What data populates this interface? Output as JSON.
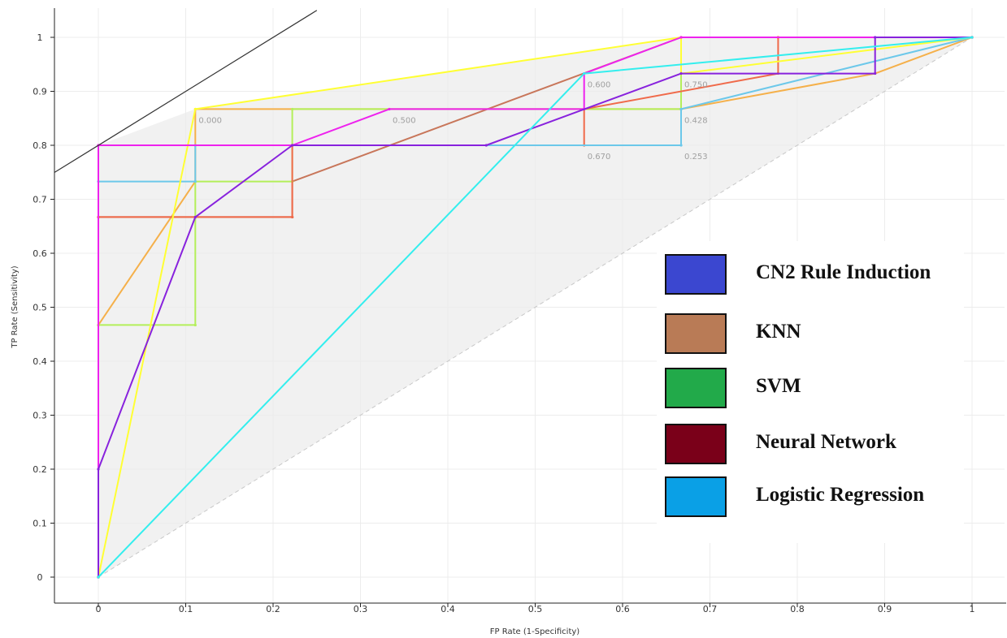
{
  "chart_data": {
    "type": "line",
    "title": "",
    "xlabel": "FP Rate (1-Specificity)",
    "ylabel": "TP Rate (Sensitivity)",
    "xlim": [
      0,
      1
    ],
    "ylim": [
      0,
      1
    ],
    "x_ticks": [
      "0",
      "0.1",
      "0.2",
      "0.3",
      "0.4",
      "0.5",
      "0.6",
      "0.7",
      "0.8",
      "0.9",
      "1"
    ],
    "y_ticks": [
      "0",
      "0.1",
      "0.2",
      "0.3",
      "0.4",
      "0.5",
      "0.6",
      "0.7",
      "0.8",
      "0.9",
      "1"
    ],
    "grid": true,
    "legend_position": "right",
    "legend": [
      {
        "label": "CN2 Rule Induction",
        "color": "#3b47d0"
      },
      {
        "label": "KNN",
        "color": "#b97b56"
      },
      {
        "label": "SVM",
        "color": "#22aa4a"
      },
      {
        "label": "Neural Network",
        "color": "#7a0019"
      },
      {
        "label": "Logistic Regression",
        "color": "#0aa0e6"
      }
    ],
    "series": [
      {
        "color": "#f5b04a",
        "points": [
          [
            0,
            0
          ],
          [
            0,
            0.467
          ],
          [
            0.111,
            0.733
          ],
          [
            0.111,
            0.867
          ],
          [
            0.667,
            0.867
          ],
          [
            0.889,
            0.933
          ],
          [
            1,
            1
          ]
        ]
      },
      {
        "color": "#c8765a",
        "points": [
          [
            0,
            0
          ],
          [
            0,
            0.667
          ],
          [
            0.222,
            0.667
          ],
          [
            0.222,
            0.733
          ],
          [
            0.667,
            1
          ],
          [
            1,
            1
          ]
        ]
      },
      {
        "color": "#b4ef5a",
        "points": [
          [
            0,
            0
          ],
          [
            0,
            0.467
          ],
          [
            0.111,
            0.467
          ],
          [
            0.111,
            0.733
          ],
          [
            0.222,
            0.733
          ],
          [
            0.222,
            0.867
          ],
          [
            0.667,
            0.867
          ],
          [
            0.667,
            1
          ],
          [
            1,
            1
          ]
        ]
      },
      {
        "color": "#f06a4a",
        "points": [
          [
            0,
            0
          ],
          [
            0,
            0.667
          ],
          [
            0.222,
            0.667
          ],
          [
            0.222,
            0.8
          ],
          [
            0.556,
            0.8
          ],
          [
            0.556,
            0.867
          ],
          [
            0.778,
            0.933
          ],
          [
            0.778,
            1
          ],
          [
            1,
            1
          ]
        ]
      },
      {
        "color": "#6cc8ea",
        "points": [
          [
            0,
            0
          ],
          [
            0,
            0.733
          ],
          [
            0.111,
            0.733
          ],
          [
            0.111,
            0.8
          ],
          [
            0.667,
            0.8
          ],
          [
            0.667,
            0.867
          ],
          [
            1,
            1
          ]
        ]
      },
      {
        "color": "#ffff33",
        "points": [
          [
            0,
            0
          ],
          [
            0.111,
            0.867
          ],
          [
            0.667,
            1
          ],
          [
            0.667,
            0.933
          ],
          [
            1,
            1
          ]
        ]
      },
      {
        "color": "#ee22ee",
        "points": [
          [
            0,
            0
          ],
          [
            0,
            0.8
          ],
          [
            0.222,
            0.8
          ],
          [
            0.333,
            0.867
          ],
          [
            0.556,
            0.867
          ],
          [
            0.556,
            0.933
          ],
          [
            0.667,
            1
          ],
          [
            1,
            1
          ]
        ]
      },
      {
        "color": "#8822dd",
        "points": [
          [
            0,
            0
          ],
          [
            0,
            0.2
          ],
          [
            0.111,
            0.667
          ],
          [
            0.222,
            0.8
          ],
          [
            0.444,
            0.8
          ],
          [
            0.667,
            0.933
          ],
          [
            0.889,
            0.933
          ],
          [
            0.889,
            1
          ],
          [
            1,
            1
          ]
        ]
      },
      {
        "color": "#33eeee",
        "points": [
          [
            0,
            0
          ],
          [
            0.556,
            0.933
          ],
          [
            1,
            1
          ]
        ]
      }
    ],
    "hull": {
      "color": "#ececec",
      "points": [
        [
          0,
          0
        ],
        [
          0,
          0.8
        ],
        [
          0.111,
          0.867
        ],
        [
          0.667,
          1
        ],
        [
          1,
          1
        ]
      ]
    },
    "iso_performance_line": {
      "color": "#333333",
      "points": [
        [
          -0.05,
          0.75
        ],
        [
          0.25,
          1.05
        ]
      ]
    },
    "diagonal": {
      "color": "#c8c8c8",
      "points": [
        [
          0,
          0
        ],
        [
          1,
          1
        ]
      ]
    },
    "threshold_labels": [
      {
        "text": "0.000",
        "x": 0.111,
        "y": 0.867
      },
      {
        "text": "0.500",
        "x": 0.333,
        "y": 0.867
      },
      {
        "text": "0.600",
        "x": 0.556,
        "y": 0.933
      },
      {
        "text": "0.750",
        "x": 0.667,
        "y": 0.933
      },
      {
        "text": "0.428",
        "x": 0.667,
        "y": 0.867
      },
      {
        "text": "0.670",
        "x": 0.556,
        "y": 0.8
      },
      {
        "text": "0.253",
        "x": 0.667,
        "y": 0.8
      }
    ]
  }
}
